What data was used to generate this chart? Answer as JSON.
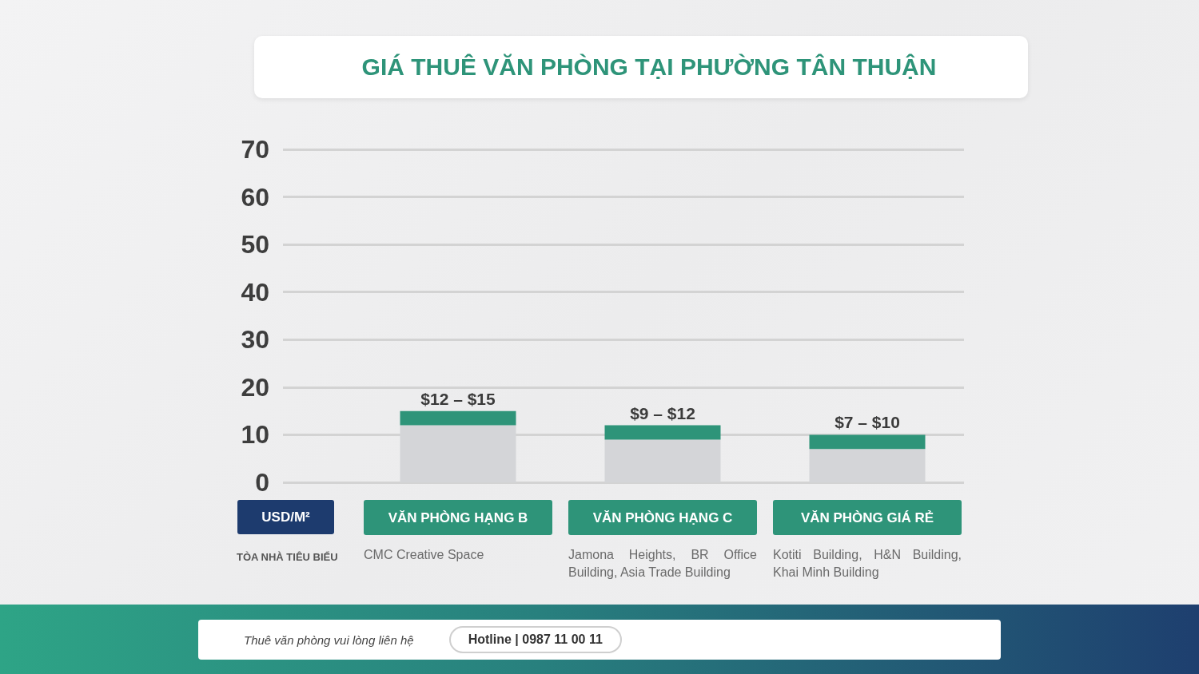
{
  "chart_data": {
    "type": "bar",
    "title": "GIÁ THUÊ VĂN PHÒNG TẠI PHƯỜNG TÂN THUẬN",
    "ylabel": "USD/M²",
    "categories": [
      "VĂN PHÒNG HẠNG B",
      "VĂN PHÒNG HẠNG C",
      "VĂN PHÒNG GIÁ RẺ"
    ],
    "stacked": true,
    "series": [
      {
        "color": "#d4d5d8",
        "values": [
          12,
          9,
          7
        ]
      },
      {
        "color": "#2e9479",
        "values": [
          3,
          3,
          3
        ]
      }
    ],
    "ylim": [
      0,
      70
    ],
    "yticks": [
      0,
      10,
      20,
      30,
      40,
      50,
      60,
      70
    ],
    "grid": "y",
    "annotations": [
      "TÒA NHÀ TIÊU BIỂU",
      "CMC Creative Space",
      "Jamona Heights, BR Office Building, Asia Trade Building",
      "Kotiti Building, H&N Building, Khai Minh Building",
      "Thuê văn phòng vui lòng liên hệ",
      "Hotline | 0987 11 00 11",
      {
        "text": "$12 – $15",
        "x": "VĂN PHÒNG HẠNG B",
        "y": 15
      },
      {
        "text": "$9 – $12",
        "x": "VĂN PHÒNG HẠNG C",
        "y": 12
      },
      {
        "text": "$7 – $10",
        "x": "VĂN PHÒNG GIÁ RẺ",
        "y": 10
      }
    ]
  }
}
